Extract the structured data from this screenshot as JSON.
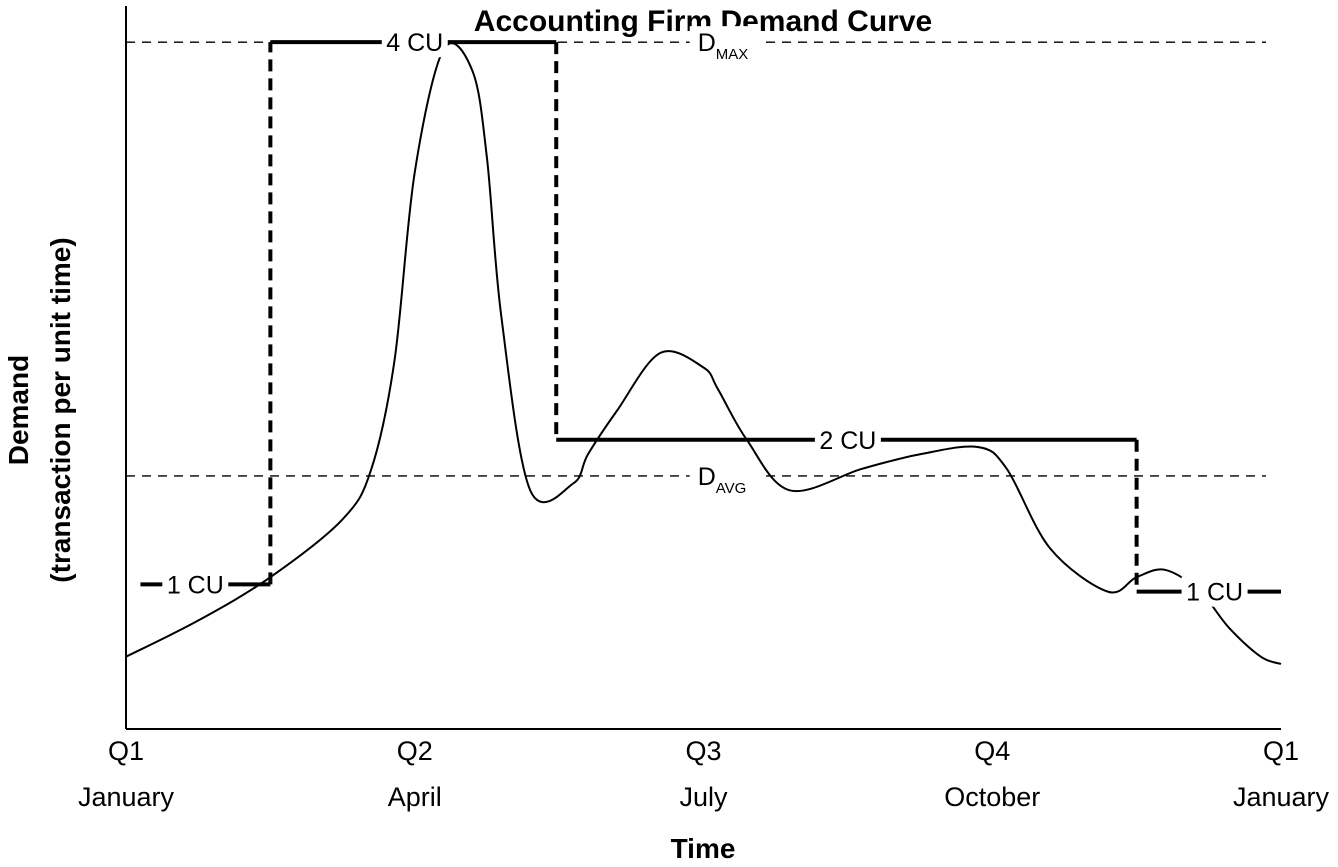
{
  "chart_data": {
    "type": "line",
    "title": "Accounting Firm Demand Curve",
    "xlabel": "Time",
    "ylabel": [
      "Demand",
      "(transaction per unit time)"
    ],
    "x_ticks": [
      {
        "quarter": "Q1",
        "month": "January"
      },
      {
        "quarter": "Q2",
        "month": "April"
      },
      {
        "quarter": "Q3",
        "month": "July"
      },
      {
        "quarter": "Q4",
        "month": "October"
      },
      {
        "quarter": "Q1",
        "month": "January"
      }
    ],
    "xlim": [
      0,
      4
    ],
    "ylim": [
      0,
      100
    ],
    "grid": false,
    "demand_curve": {
      "x": [
        0,
        0.25,
        0.5,
        0.75,
        0.85,
        0.93,
        1.0,
        1.1,
        1.2,
        1.25,
        1.3,
        1.4,
        1.55,
        1.6,
        1.7,
        1.85,
        2.0,
        2.05,
        2.15,
        2.3,
        2.55,
        2.75,
        2.95,
        3.05,
        3.2,
        3.4,
        3.5,
        3.6,
        3.72,
        3.82,
        3.93,
        4.0
      ],
      "y": [
        10,
        15,
        21,
        29,
        36,
        51,
        77,
        94,
        91,
        79,
        57,
        33,
        34,
        38,
        44,
        52,
        50,
        47,
        40,
        33,
        36,
        38,
        39,
        36,
        25,
        19,
        21,
        22,
        19,
        14,
        10,
        9
      ]
    },
    "reference_lines": [
      {
        "label": "D",
        "subscript": "MAX",
        "y": 95
      },
      {
        "label": "D",
        "subscript": "AVG",
        "y": 35
      }
    ],
    "capacity_steps": [
      {
        "label": "1 CU",
        "x_start": 0.05,
        "x_end": 0.5,
        "y": 20
      },
      {
        "label": "4 CU",
        "x_start": 0.5,
        "x_end": 1.49,
        "y": 95
      },
      {
        "label": "2 CU",
        "x_start": 1.49,
        "x_end": 3.5,
        "y": 40
      },
      {
        "label": "1 CU",
        "x_start": 3.5,
        "x_end": 4.0,
        "y": 19
      }
    ]
  }
}
